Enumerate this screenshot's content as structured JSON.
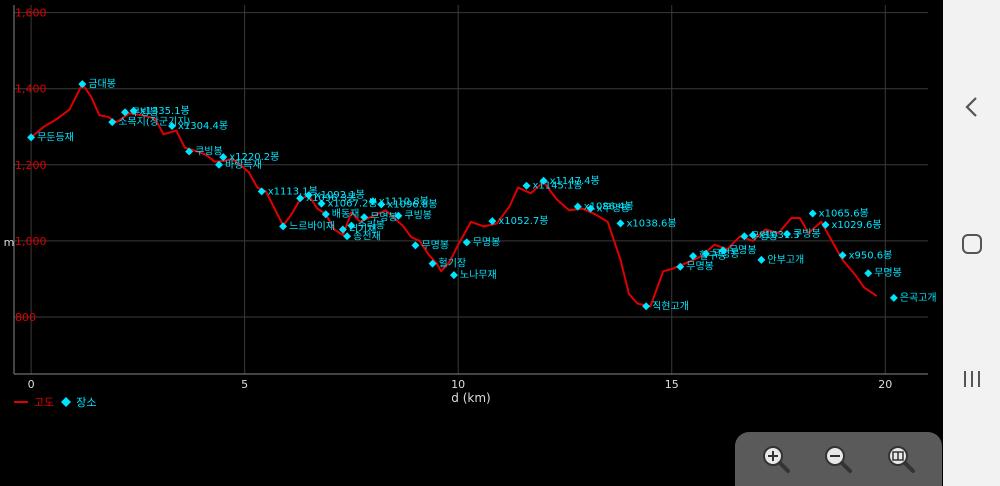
{
  "chart_data": {
    "type": "line",
    "xlabel": "d (km)",
    "ylabel": "m",
    "xlim": [
      -0.4,
      21.0
    ],
    "ylim": [
      650,
      1620
    ],
    "x_ticks": [
      0,
      5,
      10,
      15,
      20
    ],
    "y_ticks": [
      800,
      1000,
      1200,
      1400,
      1600
    ],
    "y_tick_labels": [
      "800",
      "1,000",
      "1,200",
      "1,400",
      "1,600"
    ],
    "grid": true,
    "series": [
      {
        "name": "고도",
        "color": "#e00000",
        "points": [
          [
            0,
            1272
          ],
          [
            0.3,
            1300
          ],
          [
            0.6,
            1320
          ],
          [
            0.9,
            1345
          ],
          [
            1.2,
            1412
          ],
          [
            1.4,
            1380
          ],
          [
            1.6,
            1330
          ],
          [
            1.8,
            1326
          ],
          [
            2.0,
            1312
          ],
          [
            2.3,
            1335
          ],
          [
            2.6,
            1330
          ],
          [
            2.9,
            1322
          ],
          [
            3.1,
            1280
          ],
          [
            3.4,
            1290
          ],
          [
            3.6,
            1245
          ],
          [
            3.9,
            1235
          ],
          [
            4.1,
            1226
          ],
          [
            4.3,
            1208
          ],
          [
            4.5,
            1210
          ],
          [
            4.7,
            1215
          ],
          [
            4.9,
            1200
          ],
          [
            5.1,
            1180
          ],
          [
            5.3,
            1140
          ],
          [
            5.5,
            1130
          ],
          [
            5.7,
            1085
          ],
          [
            5.9,
            1040
          ],
          [
            6.1,
            1070
          ],
          [
            6.3,
            1110
          ],
          [
            6.5,
            1120
          ],
          [
            6.7,
            1085
          ],
          [
            6.9,
            1070
          ],
          [
            7.1,
            1030
          ],
          [
            7.3,
            1015
          ],
          [
            7.5,
            1075
          ],
          [
            7.7,
            1050
          ],
          [
            7.9,
            1060
          ],
          [
            8.1,
            1070
          ],
          [
            8.3,
            1080
          ],
          [
            8.5,
            1060
          ],
          [
            8.7,
            1040
          ],
          [
            8.9,
            1010
          ],
          [
            9.1,
            1000
          ],
          [
            9.3,
            965
          ],
          [
            9.5,
            940
          ],
          [
            9.6,
            920
          ],
          [
            9.8,
            945
          ],
          [
            10.0,
            990
          ],
          [
            10.3,
            1050
          ],
          [
            10.6,
            1038
          ],
          [
            10.9,
            1045
          ],
          [
            11.2,
            1090
          ],
          [
            11.4,
            1140
          ],
          [
            11.7,
            1125
          ],
          [
            12.0,
            1155
          ],
          [
            12.3,
            1110
          ],
          [
            12.6,
            1080
          ],
          [
            12.9,
            1085
          ],
          [
            13.2,
            1070
          ],
          [
            13.5,
            1050
          ],
          [
            13.8,
            950
          ],
          [
            14.0,
            860
          ],
          [
            14.2,
            835
          ],
          [
            14.5,
            828
          ],
          [
            14.8,
            920
          ],
          [
            15.0,
            926
          ],
          [
            15.3,
            940
          ],
          [
            15.7,
            960
          ],
          [
            16.0,
            990
          ],
          [
            16.3,
            978
          ],
          [
            16.6,
            1012
          ],
          [
            16.9,
            1000
          ],
          [
            17.2,
            1030
          ],
          [
            17.5,
            1020
          ],
          [
            17.8,
            1060
          ],
          [
            18.0,
            1060
          ],
          [
            18.2,
            1020
          ],
          [
            18.5,
            1050
          ],
          [
            18.8,
            990
          ],
          [
            19.0,
            950
          ],
          [
            19.3,
            910
          ],
          [
            19.5,
            878
          ],
          [
            19.8,
            855
          ]
        ]
      }
    ],
    "places_series_name": "장소",
    "places_color": "#00e5ff",
    "places": [
      {
        "x": 0.0,
        "y": 1272,
        "label": "무둔등재"
      },
      {
        "x": 1.2,
        "y": 1412,
        "label": "금대봉"
      },
      {
        "x": 1.9,
        "y": 1312,
        "label": "소목지(장군기지)"
      },
      {
        "x": 2.2,
        "y": 1338,
        "label": "쿠빙봉"
      },
      {
        "x": 2.4,
        "y": 1342,
        "label": "x1335.1봉"
      },
      {
        "x": 3.3,
        "y": 1302,
        "label": "x1304.4봉"
      },
      {
        "x": 3.7,
        "y": 1235,
        "label": "쿠빙봉"
      },
      {
        "x": 4.5,
        "y": 1220,
        "label": "x1220.2봉"
      },
      {
        "x": 4.4,
        "y": 1200,
        "label": "바랑득재"
      },
      {
        "x": 5.4,
        "y": 1130,
        "label": "x1113.1봉"
      },
      {
        "x": 5.9,
        "y": 1038,
        "label": "느르바이재"
      },
      {
        "x": 6.3,
        "y": 1112,
        "label": "x1096.3봉"
      },
      {
        "x": 6.5,
        "y": 1120,
        "label": "x1092.1봉"
      },
      {
        "x": 6.8,
        "y": 1098,
        "label": "x1067.2봉"
      },
      {
        "x": 6.9,
        "y": 1070,
        "label": "배동재"
      },
      {
        "x": 7.3,
        "y": 1030,
        "label": "너기재"
      },
      {
        "x": 7.4,
        "y": 1012,
        "label": "송전재"
      },
      {
        "x": 7.5,
        "y": 1040,
        "label": "수리봉"
      },
      {
        "x": 7.8,
        "y": 1062,
        "label": "무명봉"
      },
      {
        "x": 8.0,
        "y": 1104,
        "label": "x1110.8봉"
      },
      {
        "x": 8.2,
        "y": 1096,
        "label": "x1096.8봉"
      },
      {
        "x": 8.6,
        "y": 1066,
        "label": "쿠빙봉"
      },
      {
        "x": 9.0,
        "y": 988,
        "label": "무명봉"
      },
      {
        "x": 9.4,
        "y": 940,
        "label": "헐기장"
      },
      {
        "x": 9.9,
        "y": 910,
        "label": "노나무재"
      },
      {
        "x": 10.2,
        "y": 996,
        "label": "무명봉"
      },
      {
        "x": 10.8,
        "y": 1052,
        "label": "x1052.7봉"
      },
      {
        "x": 11.6,
        "y": 1145,
        "label": "x1145.1봉"
      },
      {
        "x": 12.0,
        "y": 1158,
        "label": "x1147.4봉"
      },
      {
        "x": 12.8,
        "y": 1090,
        "label": "x1086.4봉"
      },
      {
        "x": 13.1,
        "y": 1085,
        "label": "x무명봉"
      },
      {
        "x": 13.8,
        "y": 1046,
        "label": "x1038.6봉"
      },
      {
        "x": 14.4,
        "y": 828,
        "label": "직현고개"
      },
      {
        "x": 15.2,
        "y": 932,
        "label": "무명봉"
      },
      {
        "x": 15.5,
        "y": 960,
        "label": "헐구봉"
      },
      {
        "x": 15.8,
        "y": 966,
        "label": "무명봉"
      },
      {
        "x": 16.2,
        "y": 975,
        "label": "무명봉"
      },
      {
        "x": 16.7,
        "y": 1012,
        "label": "무명봉"
      },
      {
        "x": 16.9,
        "y": 1015,
        "label": "x1031.3"
      },
      {
        "x": 17.1,
        "y": 950,
        "label": "안부고개"
      },
      {
        "x": 17.7,
        "y": 1018,
        "label": "쿠빙봉"
      },
      {
        "x": 18.3,
        "y": 1072,
        "label": "x1065.6봉"
      },
      {
        "x": 18.6,
        "y": 1042,
        "label": "x1029.6봉"
      },
      {
        "x": 19.0,
        "y": 962,
        "label": "x950.6봉"
      },
      {
        "x": 19.6,
        "y": 915,
        "label": "무명봉"
      },
      {
        "x": 20.2,
        "y": 850,
        "label": "은곡고개"
      }
    ]
  },
  "icons": {
    "nav_back": "chevron-left-icon",
    "nav_home": "home-square-icon",
    "nav_recents": "recents-lines-icon",
    "zoom_in": "zoom-in-icon",
    "zoom_out": "zoom-out-icon",
    "zoom_fit": "zoom-fit-icon"
  }
}
